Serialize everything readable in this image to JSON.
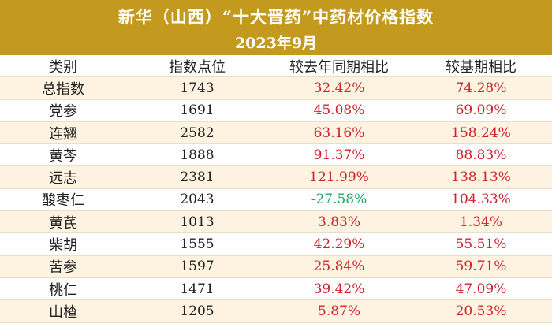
{
  "header": {
    "title": "新华（山西）“十大晋药”中药材价格指数",
    "subtitle": "2023年9月"
  },
  "table": {
    "columns": [
      "类别",
      "指数点位",
      "较去年同期相比",
      "较基期相比"
    ],
    "rows": [
      {
        "name": "总指数",
        "index": "1743",
        "yoy": "32.42%",
        "base": "74.28%"
      },
      {
        "name": "党参",
        "index": "1691",
        "yoy": "45.08%",
        "base": "69.09%"
      },
      {
        "name": "连翘",
        "index": "2582",
        "yoy": "63.16%",
        "base": "158.24%"
      },
      {
        "name": "黄芩",
        "index": "1888",
        "yoy": "91.37%",
        "base": "88.83%"
      },
      {
        "name": "远志",
        "index": "2381",
        "yoy": "121.99%",
        "base": "138.13%"
      },
      {
        "name": "酸枣仁",
        "index": "2043",
        "yoy": "-27.58%",
        "base": "104.33%"
      },
      {
        "name": "黄芪",
        "index": "1013",
        "yoy": "3.83%",
        "base": "1.34%"
      },
      {
        "name": "柴胡",
        "index": "1555",
        "yoy": "42.29%",
        "base": "55.51%"
      },
      {
        "name": "苦参",
        "index": "1597",
        "yoy": "25.84%",
        "base": "59.71%"
      },
      {
        "name": "桃仁",
        "index": "1471",
        "yoy": "39.42%",
        "base": "47.09%"
      },
      {
        "name": "山楂",
        "index": "1205",
        "yoy": "5.87%",
        "base": "20.53%"
      }
    ]
  },
  "colors": {
    "banner": "#c49a1e",
    "row_tint": "#fdf3e0",
    "positive": "#d0202a",
    "negative": "#1ba866"
  }
}
